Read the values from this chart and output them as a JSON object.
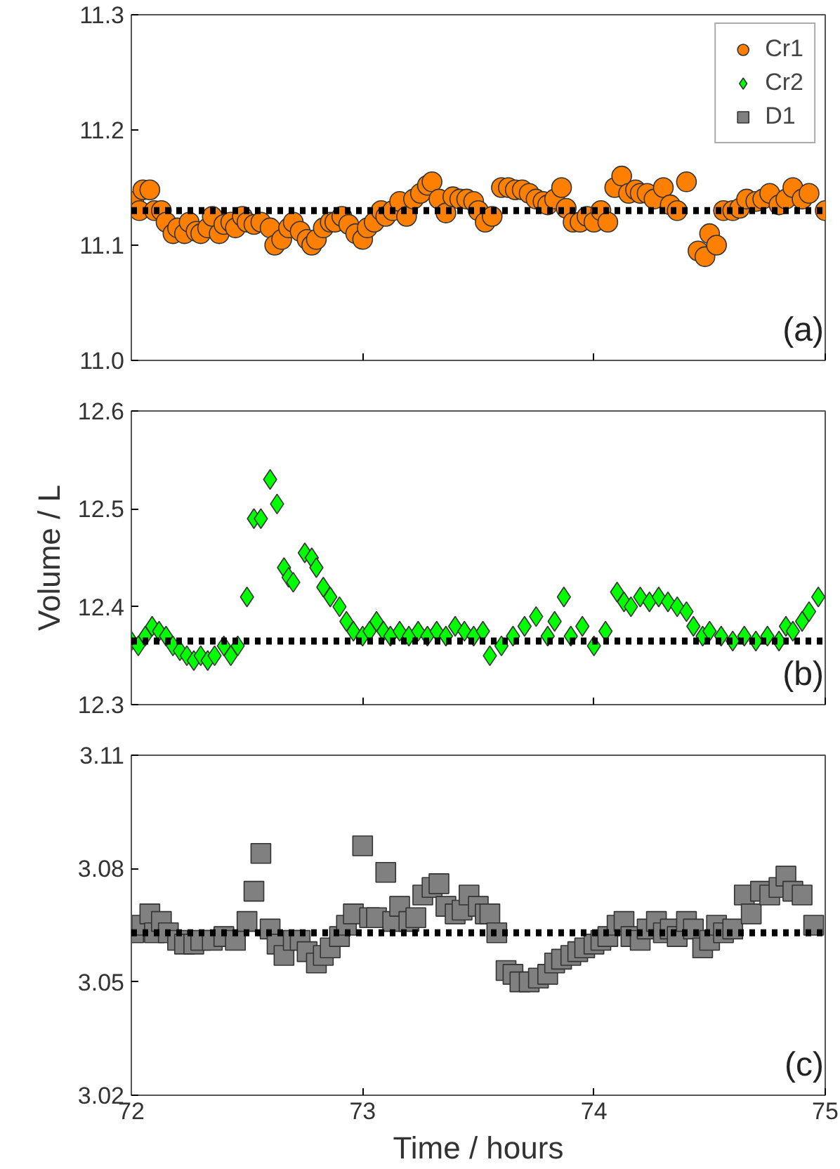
{
  "chart_data": [
    {
      "type": "scatter",
      "xlim": [
        72,
        75
      ],
      "xticks": [
        72,
        73,
        74,
        75
      ],
      "ylim": [
        11.0,
        11.3
      ],
      "yticks": [
        {
          "value": 11.0,
          "label": "11.0"
        },
        11.1,
        11.2,
        11.3
      ],
      "tick_labels": "y",
      "grid": false,
      "legend": "top right",
      "marker": "circle",
      "series": [
        {
          "name": "Cr1",
          "color": "#ff8000",
          "x": [
            72.01,
            72.035,
            72.05,
            72.08,
            72.1,
            72.13,
            72.15,
            72.18,
            72.2,
            72.23,
            72.25,
            72.28,
            72.3,
            72.33,
            72.35,
            72.38,
            72.4,
            72.43,
            72.45,
            72.48,
            72.5,
            72.53,
            72.56,
            72.6,
            72.62,
            72.65,
            72.68,
            72.7,
            72.73,
            72.76,
            72.78,
            72.8,
            72.83,
            72.86,
            72.88,
            72.91,
            72.94,
            72.97,
            73.0,
            73.02,
            73.05,
            73.08,
            73.1,
            73.13,
            73.16,
            73.19,
            73.22,
            73.25,
            73.28,
            73.3,
            73.33,
            73.36,
            73.39,
            73.42,
            73.45,
            73.48,
            73.5,
            73.53,
            73.56,
            73.6,
            73.63,
            73.66,
            73.69,
            73.72,
            73.75,
            73.78,
            73.8,
            73.83,
            73.86,
            73.88,
            73.91,
            73.94,
            73.97,
            74.0,
            74.03,
            74.06,
            74.09,
            74.12,
            74.15,
            74.18,
            74.2,
            74.23,
            74.26,
            74.3,
            74.33,
            74.36,
            74.4,
            74.45,
            74.48,
            74.5,
            74.53,
            74.56,
            74.6,
            74.63,
            74.66,
            74.7,
            74.73,
            74.76,
            74.8,
            74.83,
            74.86,
            74.9,
            74.93,
            75.0
          ],
          "values": [
            11.138,
            11.13,
            11.148,
            11.148,
            11.13,
            11.13,
            11.12,
            11.11,
            11.115,
            11.11,
            11.12,
            11.112,
            11.11,
            11.115,
            11.125,
            11.11,
            11.118,
            11.12,
            11.115,
            11.125,
            11.12,
            11.118,
            11.12,
            11.115,
            11.1,
            11.105,
            11.115,
            11.12,
            11.112,
            11.105,
            11.1,
            11.105,
            11.115,
            11.12,
            11.12,
            11.125,
            11.118,
            11.11,
            11.105,
            11.115,
            11.12,
            11.13,
            11.125,
            11.13,
            11.138,
            11.125,
            11.14,
            11.145,
            11.152,
            11.155,
            11.14,
            11.128,
            11.142,
            11.14,
            11.14,
            11.138,
            11.13,
            11.12,
            11.125,
            11.15,
            11.15,
            11.148,
            11.148,
            11.145,
            11.14,
            11.138,
            11.135,
            11.14,
            11.15,
            11.132,
            11.12,
            11.12,
            11.125,
            11.12,
            11.13,
            11.12,
            11.15,
            11.16,
            11.145,
            11.148,
            11.145,
            11.145,
            11.14,
            11.15,
            11.135,
            11.13,
            11.155,
            11.095,
            11.09,
            11.11,
            11.1,
            11.13,
            11.13,
            11.132,
            11.14,
            11.138,
            11.14,
            11.145,
            11.135,
            11.14,
            11.15,
            11.14,
            11.145,
            11.13
          ]
        }
      ],
      "ref_lines": [
        {
          "axis": "y",
          "value": 11.13,
          "color": "#000000",
          "line_style": "dashed"
        }
      ],
      "annotations": [
        "(a)"
      ]
    },
    {
      "type": "scatter",
      "xlim": [
        72,
        75
      ],
      "xticks": [
        72,
        73,
        74,
        75
      ],
      "ylim": [
        12.3,
        12.6
      ],
      "yticks": [
        12.3,
        12.4,
        12.5,
        12.6
      ],
      "tick_labels": "y",
      "grid": false,
      "ylabel": "Volume / L",
      "marker": "diamond",
      "series": [
        {
          "name": "Cr2",
          "color": "#00ff00",
          "x": [
            72.0,
            72.03,
            72.06,
            72.09,
            72.12,
            72.15,
            72.18,
            72.21,
            72.24,
            72.27,
            72.3,
            72.33,
            72.36,
            72.4,
            72.43,
            72.46,
            72.5,
            72.53,
            72.56,
            72.6,
            72.63,
            72.66,
            72.68,
            72.7,
            72.75,
            72.78,
            72.8,
            72.83,
            72.86,
            72.9,
            72.93,
            72.96,
            73.0,
            73.03,
            73.06,
            73.09,
            73.12,
            73.16,
            73.2,
            73.24,
            73.28,
            73.32,
            73.36,
            73.4,
            73.44,
            73.48,
            73.52,
            73.55,
            73.6,
            73.65,
            73.7,
            73.75,
            73.8,
            73.83,
            73.87,
            73.9,
            73.95,
            74.0,
            74.05,
            74.1,
            74.13,
            74.16,
            74.2,
            74.24,
            74.28,
            74.32,
            74.36,
            74.4,
            74.43,
            74.47,
            74.5,
            74.55,
            74.6,
            74.65,
            74.7,
            74.75,
            74.8,
            74.83,
            74.86,
            74.9,
            74.93,
            74.97
          ],
          "values": [
            12.365,
            12.36,
            12.37,
            12.38,
            12.375,
            12.37,
            12.36,
            12.355,
            12.35,
            12.345,
            12.35,
            12.345,
            12.35,
            12.36,
            12.35,
            12.36,
            12.41,
            12.49,
            12.49,
            12.53,
            12.505,
            12.44,
            12.43,
            12.425,
            12.455,
            12.45,
            12.44,
            12.42,
            12.41,
            12.4,
            12.385,
            12.375,
            12.37,
            12.375,
            12.385,
            12.375,
            12.37,
            12.375,
            12.37,
            12.375,
            12.37,
            12.375,
            12.37,
            12.38,
            12.375,
            12.37,
            12.375,
            12.35,
            12.36,
            12.37,
            12.38,
            12.39,
            12.37,
            12.385,
            12.41,
            12.37,
            12.38,
            12.36,
            12.375,
            12.415,
            12.405,
            12.4,
            12.41,
            12.405,
            12.41,
            12.405,
            12.4,
            12.395,
            12.38,
            12.37,
            12.375,
            12.37,
            12.365,
            12.37,
            12.365,
            12.37,
            12.365,
            12.38,
            12.375,
            12.385,
            12.395,
            12.41
          ]
        }
      ],
      "ref_lines": [
        {
          "axis": "y",
          "value": 12.365,
          "color": "#000000",
          "line_style": "dashed"
        }
      ],
      "annotations": [
        "(b)"
      ]
    },
    {
      "type": "scatter",
      "xlim": [
        72,
        75
      ],
      "xticks": [
        72,
        73,
        74,
        75
      ],
      "ylim": [
        3.02,
        3.11
      ],
      "yticks": [
        3.02,
        3.05,
        3.08,
        3.11
      ],
      "grid": false,
      "xlabel": "Time / hours",
      "marker": "square",
      "series": [
        {
          "name": "D1",
          "color": "#808080",
          "x": [
            72.01,
            72.045,
            72.08,
            72.1,
            72.13,
            72.16,
            72.2,
            72.23,
            72.27,
            72.3,
            72.35,
            72.4,
            72.45,
            72.5,
            72.53,
            72.56,
            72.6,
            72.63,
            72.66,
            72.7,
            72.73,
            72.76,
            72.8,
            72.83,
            72.86,
            72.9,
            72.93,
            72.96,
            73.0,
            73.03,
            73.06,
            73.1,
            73.13,
            73.16,
            73.2,
            73.23,
            73.26,
            73.3,
            73.33,
            73.36,
            73.4,
            73.43,
            73.46,
            73.5,
            73.53,
            73.55,
            73.58,
            73.62,
            73.65,
            73.68,
            73.72,
            73.76,
            73.8,
            73.83,
            73.86,
            73.9,
            73.93,
            73.96,
            74.0,
            74.03,
            74.06,
            74.1,
            74.13,
            74.16,
            74.2,
            74.23,
            74.27,
            74.3,
            74.33,
            74.36,
            74.4,
            74.43,
            74.47,
            74.5,
            74.53,
            74.56,
            74.6,
            74.65,
            74.68,
            74.72,
            74.76,
            74.8,
            74.83,
            74.86,
            74.9,
            74.95
          ],
          "values": [
            3.063,
            3.065,
            3.068,
            3.063,
            3.066,
            3.063,
            3.061,
            3.06,
            3.06,
            3.061,
            3.061,
            3.062,
            3.061,
            3.066,
            3.074,
            3.084,
            3.064,
            3.06,
            3.057,
            3.061,
            3.061,
            3.058,
            3.055,
            3.057,
            3.059,
            3.062,
            3.065,
            3.068,
            3.086,
            3.067,
            3.067,
            3.079,
            3.066,
            3.07,
            3.066,
            3.067,
            3.073,
            3.075,
            3.076,
            3.07,
            3.068,
            3.069,
            3.073,
            3.07,
            3.068,
            3.068,
            3.063,
            3.053,
            3.052,
            3.05,
            3.05,
            3.051,
            3.052,
            3.055,
            3.056,
            3.057,
            3.058,
            3.059,
            3.06,
            3.061,
            3.062,
            3.065,
            3.066,
            3.062,
            3.061,
            3.064,
            3.066,
            3.063,
            3.064,
            3.062,
            3.066,
            3.064,
            3.059,
            3.061,
            3.065,
            3.063,
            3.064,
            3.073,
            3.068,
            3.074,
            3.073,
            3.075,
            3.078,
            3.074,
            3.073,
            3.065
          ]
        }
      ],
      "ref_lines": [
        {
          "axis": "y",
          "value": 3.063,
          "color": "#000000",
          "line_style": "dashed"
        }
      ],
      "annotations": [
        "(c)"
      ]
    }
  ]
}
